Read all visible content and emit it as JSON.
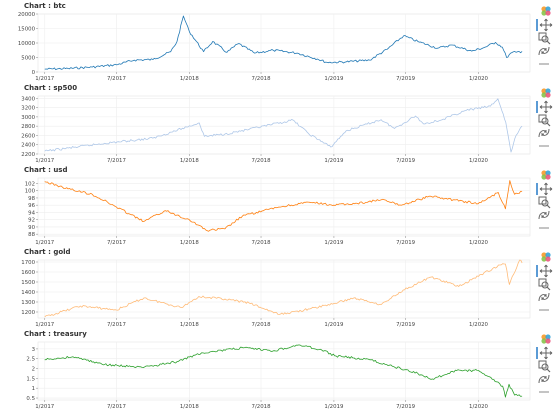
{
  "chart_data": [
    {
      "type": "line",
      "title": "Chart : btc",
      "color": "#1f77b4",
      "yticks": [
        "0",
        "5000",
        "10000",
        "15000",
        "20000"
      ],
      "ylim": [
        0,
        20000
      ],
      "xticks": [
        "1/2017",
        "7/2017",
        "1/2018",
        "7/2018",
        "1/2019",
        "7/2019",
        "1/2020"
      ],
      "xlim": [
        "2016-12-15",
        "2020-05-10"
      ],
      "x": [
        "2017-01-01",
        "2017-03-01",
        "2017-05-01",
        "2017-07-01",
        "2017-08-15",
        "2017-10-01",
        "2017-11-15",
        "2017-12-01",
        "2017-12-17",
        "2018-01-01",
        "2018-02-06",
        "2018-03-01",
        "2018-04-06",
        "2018-05-05",
        "2018-06-15",
        "2018-08-01",
        "2018-10-01",
        "2018-11-20",
        "2018-12-15",
        "2019-02-01",
        "2019-04-01",
        "2019-05-15",
        "2019-06-26",
        "2019-08-01",
        "2019-09-20",
        "2019-10-26",
        "2019-12-15",
        "2020-01-15",
        "2020-02-13",
        "2020-03-01",
        "2020-03-12",
        "2020-03-25",
        "2020-04-05",
        "2020-04-20"
      ],
      "y": [
        1000,
        1200,
        1700,
        2500,
        4100,
        4300,
        7000,
        10500,
        19300,
        14000,
        7000,
        10500,
        6800,
        9800,
        6500,
        7500,
        6500,
        4500,
        3300,
        3500,
        4100,
        7800,
        12500,
        10500,
        8200,
        9300,
        7200,
        8400,
        10200,
        8600,
        5000,
        6700,
        6800,
        7100
      ]
    },
    {
      "type": "line",
      "title": "Chart : sp500",
      "color": "#aec7e8",
      "yticks": [
        "2200",
        "2400",
        "2600",
        "2800",
        "3000",
        "3200",
        "3400"
      ],
      "ylim": [
        2200,
        3450
      ],
      "xticks": [
        "1/2017",
        "7/2017",
        "1/2018",
        "7/2018",
        "1/2019",
        "7/2019",
        "1/2020"
      ],
      "xlim": [
        "2016-12-15",
        "2020-05-10"
      ],
      "x": [
        "2017-01-01",
        "2017-06-01",
        "2017-10-01",
        "2018-01-26",
        "2018-02-08",
        "2018-04-01",
        "2018-06-01",
        "2018-09-20",
        "2018-10-29",
        "2018-12-24",
        "2019-02-01",
        "2019-04-30",
        "2019-06-03",
        "2019-07-26",
        "2019-08-15",
        "2019-10-01",
        "2019-12-01",
        "2020-01-31",
        "2020-02-19",
        "2020-03-10",
        "2020-03-23",
        "2020-04-05",
        "2020-04-20"
      ],
      "y": [
        2260,
        2430,
        2540,
        2870,
        2580,
        2630,
        2730,
        2930,
        2640,
        2350,
        2700,
        2940,
        2750,
        3020,
        2850,
        2940,
        3140,
        3230,
        3390,
        2880,
        2240,
        2600,
        2800
      ]
    },
    {
      "type": "line",
      "title": "Chart : usd",
      "color": "#ff7f0e",
      "yticks": [
        "88",
        "90",
        "92",
        "94",
        "96",
        "98",
        "100",
        "102"
      ],
      "ylim": [
        87.5,
        103.5
      ],
      "xticks": [
        "1/2017",
        "7/2017",
        "1/2018",
        "7/2018",
        "1/2019",
        "7/2019",
        "1/2020"
      ],
      "xlim": [
        "2016-12-15",
        "2020-05-10"
      ],
      "x": [
        "2017-01-01",
        "2017-03-01",
        "2017-05-01",
        "2017-07-01",
        "2017-09-08",
        "2017-11-01",
        "2018-01-01",
        "2018-02-15",
        "2018-04-01",
        "2018-05-15",
        "2018-08-15",
        "2018-11-01",
        "2019-01-01",
        "2019-03-01",
        "2019-05-01",
        "2019-06-20",
        "2019-09-01",
        "2019-10-01",
        "2019-12-31",
        "2020-02-20",
        "2020-03-09",
        "2020-03-20",
        "2020-04-01",
        "2020-04-20"
      ],
      "y": [
        102.5,
        100.5,
        99.0,
        95.5,
        91.5,
        94.5,
        92.0,
        89.0,
        89.5,
        93.0,
        95.5,
        96.8,
        96.0,
        96.5,
        97.5,
        96.0,
        98.5,
        98.0,
        96.4,
        99.5,
        95.0,
        102.8,
        99.0,
        99.8
      ]
    },
    {
      "type": "line",
      "title": "Chart : gold",
      "color": "#ffbb78",
      "yticks": [
        "1200",
        "1300",
        "1400",
        "1500",
        "1600",
        "1700"
      ],
      "ylim": [
        1140,
        1720
      ],
      "xticks": [
        "1/2017",
        "7/2017",
        "1/2018",
        "7/2018",
        "1/2019",
        "7/2019",
        "1/2020"
      ],
      "xlim": [
        "2016-12-15",
        "2020-05-10"
      ],
      "x": [
        "2017-01-01",
        "2017-04-01",
        "2017-07-01",
        "2017-09-08",
        "2017-12-12",
        "2018-01-25",
        "2018-04-01",
        "2018-06-01",
        "2018-08-16",
        "2018-11-01",
        "2019-01-01",
        "2019-02-20",
        "2019-05-01",
        "2019-06-25",
        "2019-09-04",
        "2019-11-12",
        "2020-01-08",
        "2020-02-24",
        "2020-03-09",
        "2020-03-19",
        "2020-04-14",
        "2020-04-20"
      ],
      "y": [
        1150,
        1260,
        1220,
        1340,
        1245,
        1355,
        1330,
        1290,
        1175,
        1230,
        1285,
        1340,
        1275,
        1420,
        1550,
        1455,
        1575,
        1670,
        1680,
        1475,
        1730,
        1690
      ]
    },
    {
      "type": "line",
      "title": "Chart : treasury",
      "color": "#2ca02c",
      "yticks": [
        "0.5",
        "1",
        "1.5",
        "2",
        "2.5",
        "3"
      ],
      "ylim": [
        0.4,
        3.35
      ],
      "xticks": [
        "1/2017",
        "7/2017",
        "1/2018",
        "7/2018",
        "1/2019",
        "7/2019",
        "1/2020"
      ],
      "xlim": [
        "2016-12-15",
        "2020-05-10"
      ],
      "x": [
        "2017-01-01",
        "2017-03-13",
        "2017-06-01",
        "2017-09-07",
        "2017-12-01",
        "2018-02-01",
        "2018-05-17",
        "2018-08-01",
        "2018-10-05",
        "2018-12-01",
        "2019-01-03",
        "2019-04-01",
        "2019-06-01",
        "2019-08-01",
        "2019-09-03",
        "2019-11-07",
        "2020-01-01",
        "2020-02-01",
        "2020-03-02",
        "2020-03-09",
        "2020-03-18",
        "2020-04-01",
        "2020-04-20"
      ],
      "y": [
        2.45,
        2.6,
        2.2,
        2.05,
        2.35,
        2.8,
        3.05,
        2.9,
        3.2,
        2.95,
        2.65,
        2.45,
        2.1,
        1.75,
        1.45,
        1.9,
        1.9,
        1.55,
        1.1,
        0.55,
        1.2,
        0.65,
        0.6
      ]
    }
  ]
}
